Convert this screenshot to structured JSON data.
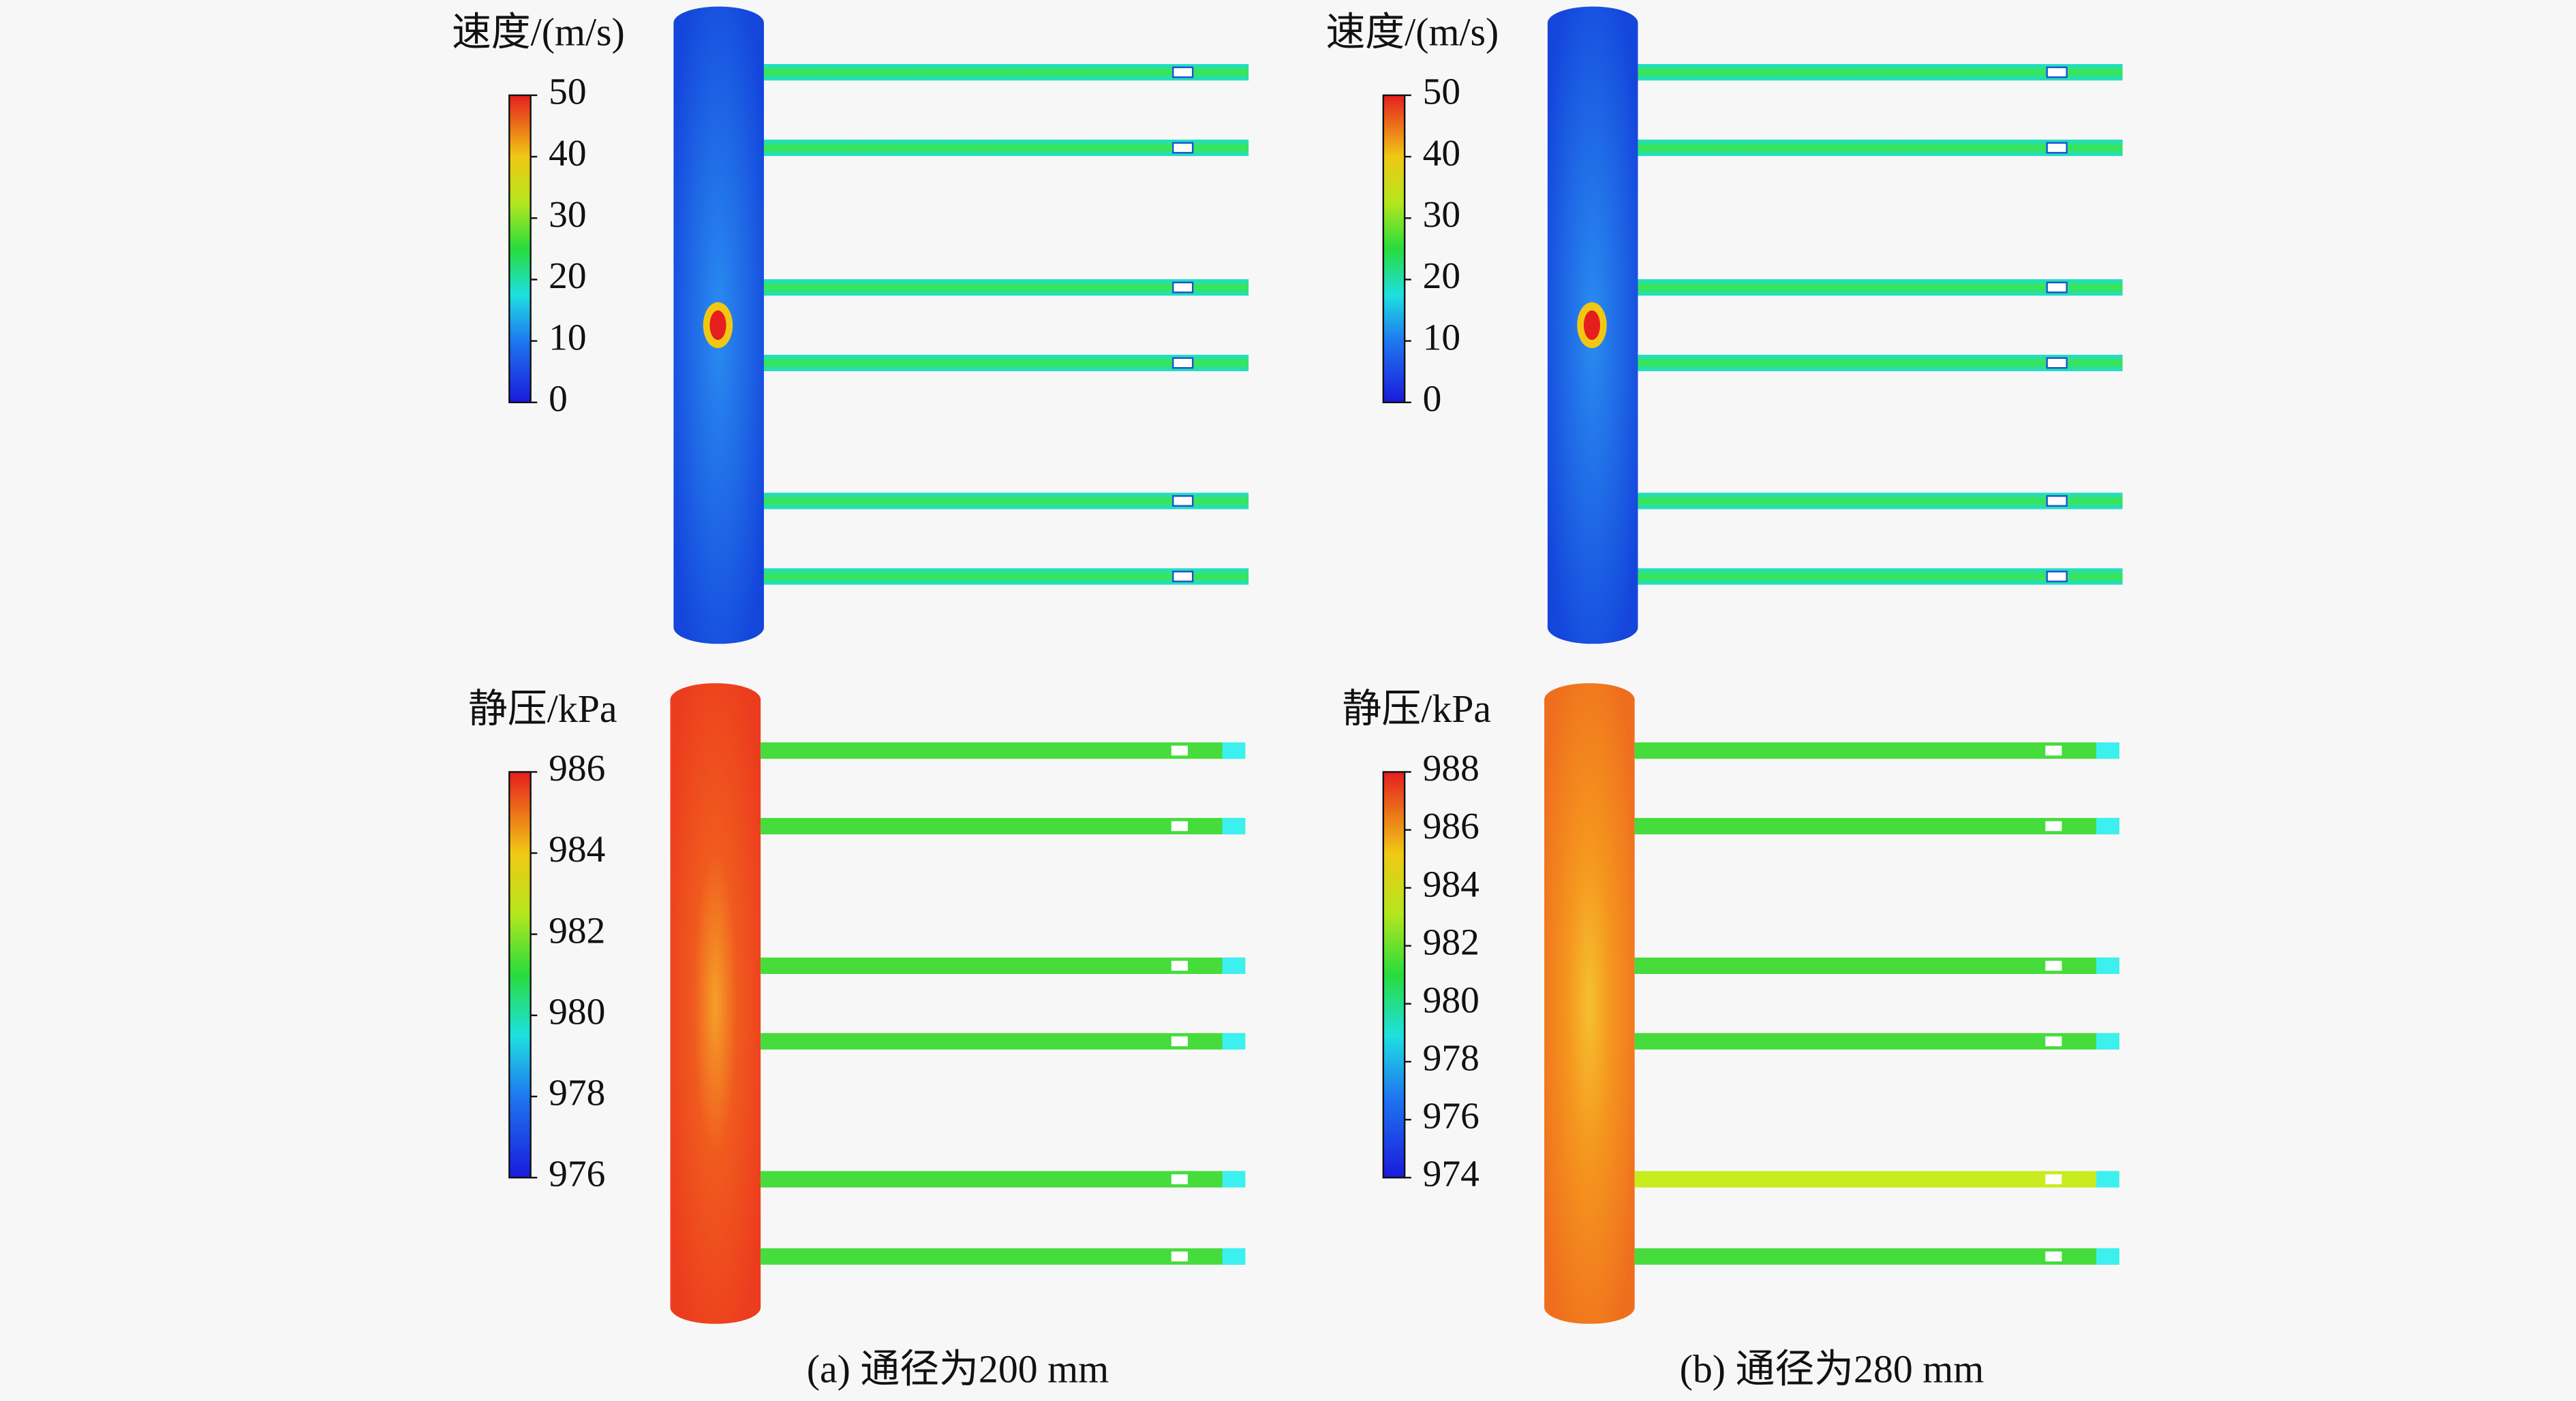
{
  "panels": [
    {
      "caption": "(a) 通径为200 mm",
      "velocity": {
        "title": "速度/(m/s)",
        "ticks": [
          0,
          10,
          20,
          30,
          40,
          50
        ]
      },
      "pressure": {
        "title": "静压/kPa",
        "ticks": [
          976,
          978,
          980,
          982,
          984,
          986
        ]
      }
    },
    {
      "caption": "(b) 通径为280 mm",
      "velocity": {
        "title": "速度/(m/s)",
        "ticks": [
          0,
          10,
          20,
          30,
          40,
          50
        ]
      },
      "pressure": {
        "title": "静压/kPa",
        "ticks": [
          974,
          976,
          978,
          980,
          982,
          984,
          986,
          988
        ]
      }
    }
  ]
}
